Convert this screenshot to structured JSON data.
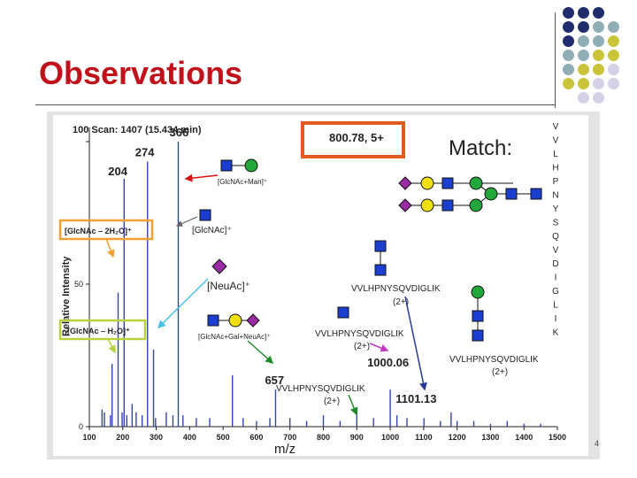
{
  "slide": {
    "title": "Observations",
    "page_number": "4"
  },
  "colors": {
    "title": "#c0121b",
    "navy": "#1f2c6e",
    "teal": "#8faeb5",
    "olive": "#c9c43a",
    "lavender": "#d3d1e6",
    "spectrum": "#3344aa",
    "hexnac": "#1a3fd0",
    "hex": "#22a83a",
    "neuac": "#9a2aa6",
    "gal": "#f0e010"
  },
  "decor_dots": [
    [
      "navy",
      "navy",
      "navy",
      ""
    ],
    [
      "navy",
      "navy",
      "teal",
      "teal"
    ],
    [
      "navy",
      "teal",
      "teal",
      "olive"
    ],
    [
      "teal",
      "teal",
      "olive",
      "olive"
    ],
    [
      "teal",
      "olive",
      "olive",
      "lavender"
    ],
    [
      "olive",
      "olive",
      "lavender",
      "lavender"
    ],
    [
      "",
      "lavender",
      "lavender",
      ""
    ]
  ],
  "chart_data": {
    "type": "bar",
    "title": "100 Scan: 1407 (15.434 min)",
    "xlabel": "m/z",
    "ylabel": "Relative Intensity",
    "xlim": [
      100,
      1500
    ],
    "ylim": [
      0,
      100
    ],
    "xticks": [
      100,
      200,
      300,
      400,
      500,
      600,
      700,
      800,
      900,
      1000,
      1100,
      1200,
      1300,
      1400,
      1500
    ],
    "yticks": [
      0,
      50,
      100
    ],
    "peaks": [
      {
        "mz": 138,
        "intensity": 6
      },
      {
        "mz": 145,
        "intensity": 5
      },
      {
        "mz": 163,
        "intensity": 4
      },
      {
        "mz": 168,
        "intensity": 22
      },
      {
        "mz": 186,
        "intensity": 47
      },
      {
        "mz": 198,
        "intensity": 5
      },
      {
        "mz": 204,
        "intensity": 87
      },
      {
        "mz": 212,
        "intensity": 4
      },
      {
        "mz": 228,
        "intensity": 8
      },
      {
        "mz": 240,
        "intensity": 5
      },
      {
        "mz": 258,
        "intensity": 4
      },
      {
        "mz": 274,
        "intensity": 93
      },
      {
        "mz": 292,
        "intensity": 27
      },
      {
        "mz": 298,
        "intensity": 3
      },
      {
        "mz": 330,
        "intensity": 5
      },
      {
        "mz": 350,
        "intensity": 4
      },
      {
        "mz": 366,
        "intensity": 100
      },
      {
        "mz": 380,
        "intensity": 4
      },
      {
        "mz": 420,
        "intensity": 3
      },
      {
        "mz": 460,
        "intensity": 3
      },
      {
        "mz": 528,
        "intensity": 18
      },
      {
        "mz": 560,
        "intensity": 3
      },
      {
        "mz": 600,
        "intensity": 2
      },
      {
        "mz": 640,
        "intensity": 3
      },
      {
        "mz": 657,
        "intensity": 13
      },
      {
        "mz": 700,
        "intensity": 3
      },
      {
        "mz": 750,
        "intensity": 2
      },
      {
        "mz": 800,
        "intensity": 4
      },
      {
        "mz": 850,
        "intensity": 2
      },
      {
        "mz": 900,
        "intensity": 6
      },
      {
        "mz": 950,
        "intensity": 3
      },
      {
        "mz": 1000,
        "intensity": 13
      },
      {
        "mz": 1020,
        "intensity": 4
      },
      {
        "mz": 1050,
        "intensity": 3
      },
      {
        "mz": 1101,
        "intensity": 3
      },
      {
        "mz": 1150,
        "intensity": 2
      },
      {
        "mz": 1182,
        "intensity": 5
      },
      {
        "mz": 1200,
        "intensity": 2
      },
      {
        "mz": 1250,
        "intensity": 2
      },
      {
        "mz": 1300,
        "intensity": 1
      },
      {
        "mz": 1350,
        "intensity": 2
      },
      {
        "mz": 1400,
        "intensity": 1
      },
      {
        "mz": 1450,
        "intensity": 1
      }
    ],
    "peak_labels": [
      {
        "mz": 204,
        "text": "204"
      },
      {
        "mz": 274,
        "text": "274"
      },
      {
        "mz": 366,
        "text": "366"
      },
      {
        "mz": 657,
        "text": "657"
      },
      {
        "mz": 1000,
        "text": "1000.06"
      },
      {
        "mz": 1101,
        "text": "1101.13"
      }
    ],
    "precursor": "800.78, 5+",
    "match_label": "Match:",
    "peptide_sequence": [
      "V",
      "V",
      "L",
      "H",
      "P",
      "N",
      "Y",
      "S",
      "Q",
      "V",
      "D",
      "I",
      "G",
      "L",
      "I",
      "K"
    ],
    "annotations": {
      "glcnac_man": "[GlcNAc+Man]⁺",
      "glcnac": "[GlcNAc]⁺",
      "glcnac_2h2o": "[GlcNAc – 2H₂O]⁺",
      "neuac": "[NeuAc]⁺",
      "glcnac_h2o": "[GlcNAc – H₂O]⁺",
      "glcnac_gal_neuac": "[GlcNAc+Gal+NeuAc]⁺",
      "pep_a": "VVLHPNYSQVDIGLIK",
      "pep_a_charge": "(2+)",
      "pep_b": "VVLHPNYSQVDIGLIK",
      "pep_b_charge": "(2+)",
      "pep_c": "VVLHPNYSQVDIGLIK",
      "pep_c_charge": "(2+)",
      "pep_d": "VVLHPNYSQVDIGLIK",
      "pep_d_charge": "(2+)"
    }
  }
}
